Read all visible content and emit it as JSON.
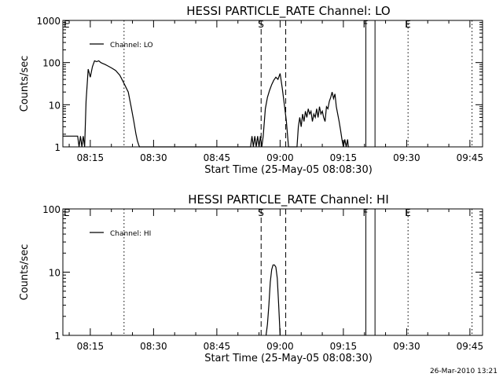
{
  "footer": {
    "date_stamp": "26-Mar-2010 13:21"
  },
  "chart_data": [
    {
      "type": "line",
      "title": "HESSI PARTICLE_RATE Channel: LO",
      "xlabel": "Start Time (25-May-05 08:08:30)",
      "ylabel": "Counts/sec",
      "yscale": "log",
      "ylim": [
        1,
        1000
      ],
      "y_ticks": [
        "1",
        "10",
        "100",
        "1000"
      ],
      "xlim": [
        "08:08:30",
        "09:48:00"
      ],
      "x_ticks": [
        "08:15",
        "08:30",
        "08:45",
        "09:00",
        "09:15",
        "09:30",
        "09:45"
      ],
      "grid": false,
      "legend": {
        "placement": "top-left",
        "entries": [
          "Channel: LO"
        ]
      },
      "markers": [
        {
          "time": "08:23:00",
          "style": "dotted",
          "label": ""
        },
        {
          "time": "08:55:30",
          "style": "dashed",
          "label": "S"
        },
        {
          "time": "09:01:20",
          "style": "dashed",
          "label": ""
        },
        {
          "time": "09:20:20",
          "style": "solid",
          "label": "F"
        },
        {
          "time": "09:22:30",
          "style": "solid",
          "label": ""
        },
        {
          "time": "09:30:20",
          "style": "dotted",
          "label": "E"
        },
        {
          "time": "09:45:30",
          "style": "dotted",
          "label": ""
        }
      ],
      "corner_label": "E",
      "series": [
        {
          "name": "Channel: LO",
          "x": [
            "08:08:30",
            "08:12:00",
            "08:12:20",
            "08:12:40",
            "08:13:00",
            "08:13:20",
            "08:13:40",
            "08:14:00",
            "08:14:30",
            "08:15:00",
            "08:15:30",
            "08:16:00",
            "08:16:30",
            "08:17:00",
            "08:17:30",
            "08:18:00",
            "08:18:30",
            "08:19:00",
            "08:20:00",
            "08:21:00",
            "08:22:00",
            "08:23:00",
            "08:24:00",
            "08:24:40",
            "08:25:20",
            "08:25:50",
            "08:26:10",
            "08:26:30",
            "08:26:40",
            "08:26:50",
            "08:53:00",
            "08:53:20",
            "08:53:40",
            "08:54:00",
            "08:54:20",
            "08:54:40",
            "08:55:00",
            "08:55:20",
            "08:55:40",
            "08:56:00",
            "08:56:30",
            "08:57:00",
            "08:57:30",
            "08:58:00",
            "08:58:30",
            "08:59:00",
            "08:59:30",
            "09:00:00",
            "09:00:30",
            "09:01:00",
            "09:01:30",
            "09:02:00",
            "09:04:00",
            "09:04:20",
            "09:04:40",
            "09:05:00",
            "09:05:20",
            "09:05:40",
            "09:06:00",
            "09:06:20",
            "09:06:40",
            "09:07:00",
            "09:07:20",
            "09:07:40",
            "09:08:00",
            "09:08:20",
            "09:08:40",
            "09:09:00",
            "09:09:20",
            "09:09:40",
            "09:10:00",
            "09:10:20",
            "09:10:40",
            "09:11:00",
            "09:11:20",
            "09:11:40",
            "09:12:00",
            "09:12:20",
            "09:12:40",
            "09:13:00",
            "09:13:20",
            "09:13:40",
            "09:14:00",
            "09:14:20",
            "09:14:40",
            "09:15:00",
            "09:15:20",
            "09:15:40",
            "09:16:00",
            "09:16:10",
            "09:16:20"
          ],
          "y": [
            1.8,
            1.8,
            1.0,
            1.8,
            1.0,
            1.8,
            1.0,
            12,
            70,
            45,
            80,
            110,
            105,
            110,
            100,
            95,
            90,
            85,
            75,
            65,
            50,
            32,
            20,
            9,
            4,
            2,
            1.4,
            1.1,
            1.0,
            1.0,
            1.0,
            1.8,
            1.0,
            1.8,
            1.0,
            1.8,
            1.0,
            1.8,
            1.0,
            1.8,
            8,
            15,
            22,
            30,
            38,
            45,
            40,
            55,
            25,
            10,
            4,
            1.0,
            1.0,
            3,
            5,
            3,
            6,
            4,
            7,
            5,
            8,
            6,
            7,
            4,
            6,
            5,
            8,
            5,
            9,
            6,
            7,
            5,
            4,
            9,
            8,
            12,
            15,
            20,
            14,
            18,
            9,
            6,
            4,
            2.5,
            1.5,
            1.0,
            1.5,
            1.0,
            1.5,
            1.0,
            1.0
          ]
        }
      ]
    },
    {
      "type": "line",
      "title": "HESSI PARTICLE_RATE Channel: HI",
      "xlabel": "Start Time (25-May-05 08:08:30)",
      "ylabel": "Counts/sec",
      "yscale": "log",
      "ylim": [
        1,
        100
      ],
      "y_ticks": [
        "1",
        "10",
        "100"
      ],
      "xlim": [
        "08:08:30",
        "09:48:00"
      ],
      "x_ticks": [
        "08:15",
        "08:30",
        "08:45",
        "09:00",
        "09:15",
        "09:30",
        "09:45"
      ],
      "grid": false,
      "legend": {
        "placement": "top-left",
        "entries": [
          "Channel: HI"
        ]
      },
      "markers": [
        {
          "time": "08:23:00",
          "style": "dotted",
          "label": ""
        },
        {
          "time": "08:55:30",
          "style": "dashed",
          "label": "S"
        },
        {
          "time": "09:01:20",
          "style": "dashed",
          "label": ""
        },
        {
          "time": "09:20:20",
          "style": "solid",
          "label": "F"
        },
        {
          "time": "09:22:30",
          "style": "solid",
          "label": ""
        },
        {
          "time": "09:30:20",
          "style": "dotted",
          "label": "E"
        },
        {
          "time": "09:45:30",
          "style": "dotted",
          "label": ""
        }
      ],
      "corner_label": "E",
      "series": [
        {
          "name": "Channel: HI",
          "x": [
            "08:56:40",
            "08:57:00",
            "08:57:20",
            "08:57:40",
            "08:58:00",
            "08:58:20",
            "08:58:40",
            "08:59:00",
            "08:59:20",
            "08:59:40",
            "09:00:00"
          ],
          "y": [
            1.0,
            1.5,
            3,
            7,
            11,
            13,
            13,
            12,
            8,
            3,
            1.0
          ]
        }
      ]
    }
  ]
}
